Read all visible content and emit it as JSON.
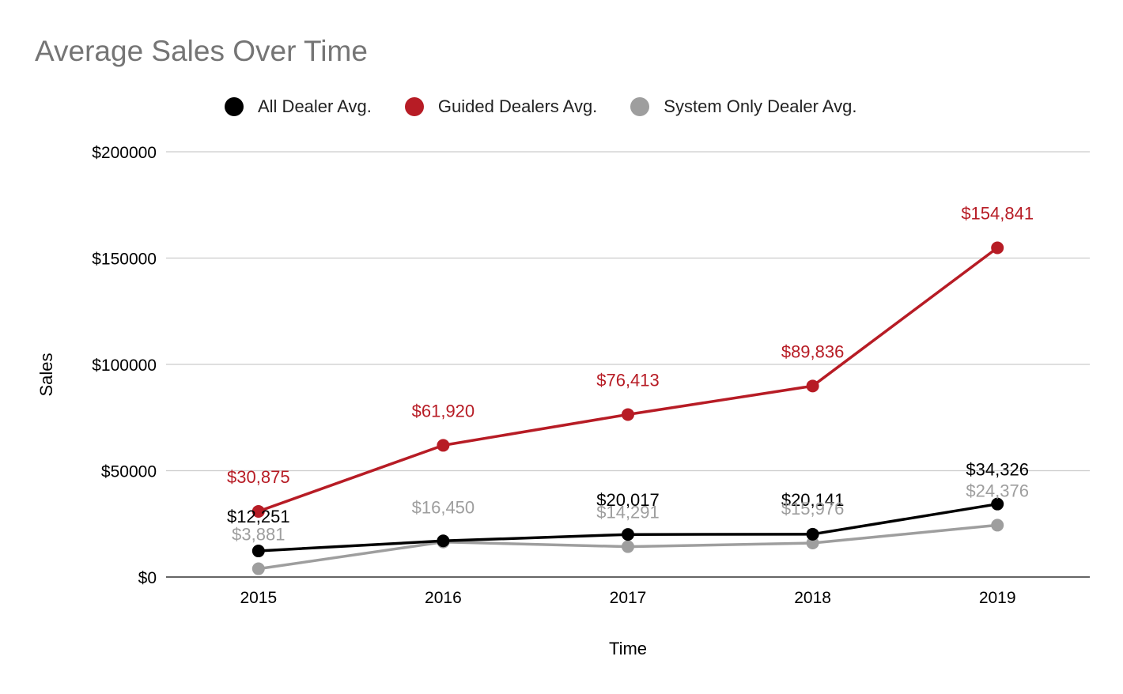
{
  "chart_data": {
    "type": "line",
    "title": "Average Sales Over Time",
    "xlabel": "Time",
    "ylabel": "Sales",
    "categories": [
      "2015",
      "2016",
      "2017",
      "2018",
      "2019"
    ],
    "ylim": [
      0,
      200000
    ],
    "yticks": [
      0,
      50000,
      100000,
      150000,
      200000
    ],
    "ytick_labels": [
      "$0",
      "$50000",
      "$100000",
      "$150000",
      "$200000"
    ],
    "grid": true,
    "legend_position": "top",
    "series": [
      {
        "name": "All Dealer Avg.",
        "color": "#000000",
        "values": [
          12251,
          17000,
          20017,
          20141,
          34326
        ],
        "labels": [
          "$12,251",
          "",
          "$20,017",
          "$20,141",
          "$34,326"
        ]
      },
      {
        "name": "Guided Dealers Avg.",
        "color": "#b71c25",
        "values": [
          30875,
          61920,
          76413,
          89836,
          154841
        ],
        "labels": [
          "$30,875",
          "$61,920",
          "$76,413",
          "$89,836",
          "$154,841"
        ]
      },
      {
        "name": "System Only Dealer Avg.",
        "color": "#9e9e9e",
        "values": [
          3881,
          16450,
          14291,
          15976,
          24376
        ],
        "labels": [
          "$3,881",
          "$16,450",
          "$14,291",
          "$15,976",
          "$24,376"
        ]
      }
    ]
  }
}
